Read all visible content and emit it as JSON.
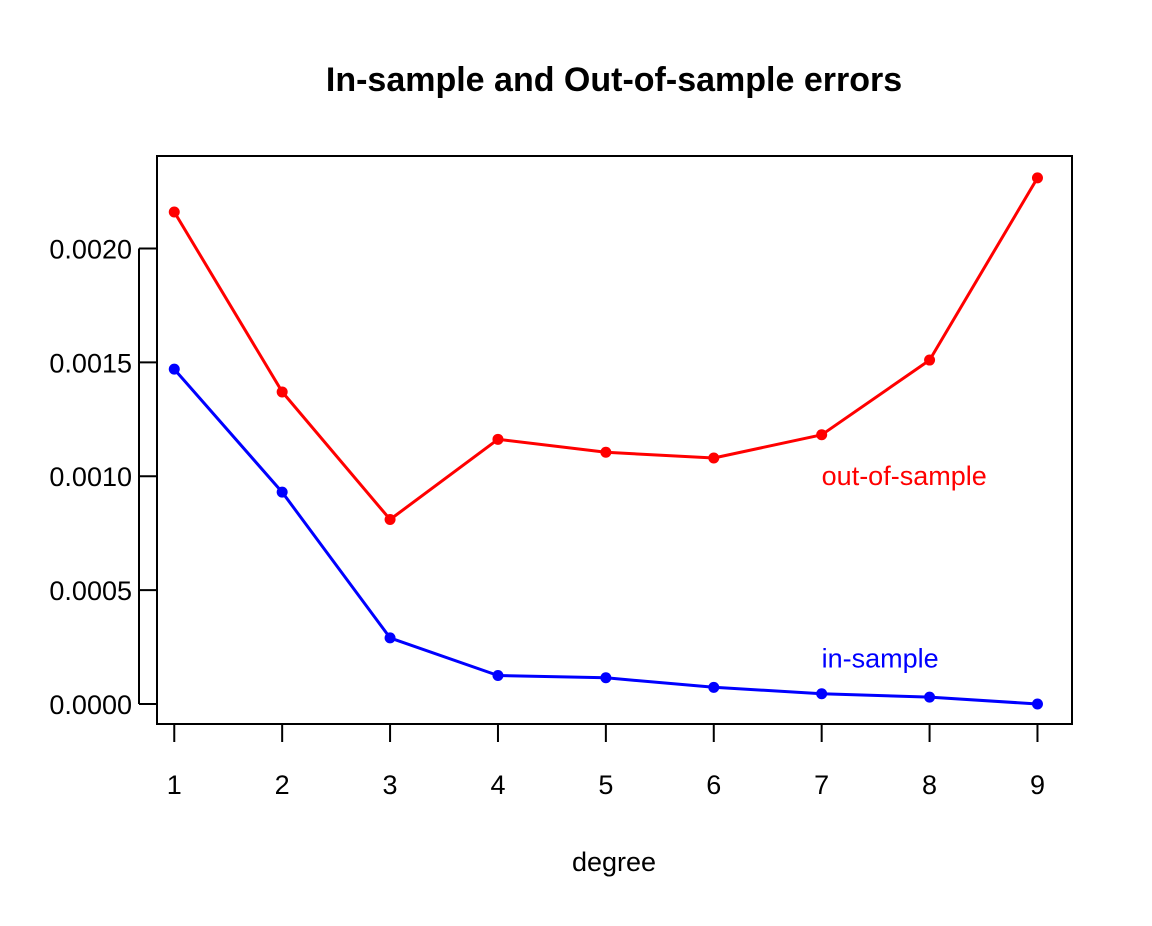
{
  "chart_data": {
    "type": "line",
    "title": "In-sample and Out-of-sample errors",
    "xlabel": "degree",
    "ylabel": "",
    "x": [
      1,
      2,
      3,
      4,
      5,
      6,
      7,
      8,
      9
    ],
    "x_ticks": [
      "1",
      "2",
      "3",
      "4",
      "5",
      "6",
      "7",
      "8",
      "9"
    ],
    "y_ticks": [
      0.0,
      0.0005,
      0.001,
      0.0015,
      0.002
    ],
    "y_tick_labels": [
      "0.0000",
      "0.0005",
      "0.0010",
      "0.0015",
      "0.0020"
    ],
    "xlim": [
      0.84,
      9.32
    ],
    "ylim": [
      -8.8e-05,
      0.002406
    ],
    "grid": false,
    "legend": "none",
    "series": [
      {
        "name": "out-of-sample",
        "color": "#ff0000",
        "values": [
          0.00216,
          0.00137,
          0.00081,
          0.001162,
          0.001105,
          0.00108,
          0.001182,
          0.00151,
          0.00231
        ],
        "label": {
          "x": 7,
          "y": 0.001
        }
      },
      {
        "name": "in-sample",
        "color": "#0000ff",
        "values": [
          0.00147,
          0.00093,
          0.00029,
          0.000125,
          0.000115,
          7.3e-05,
          4.5e-05,
          3e-05,
          0.0
        ],
        "label": {
          "x": 7,
          "y": 0.0002
        }
      }
    ]
  }
}
